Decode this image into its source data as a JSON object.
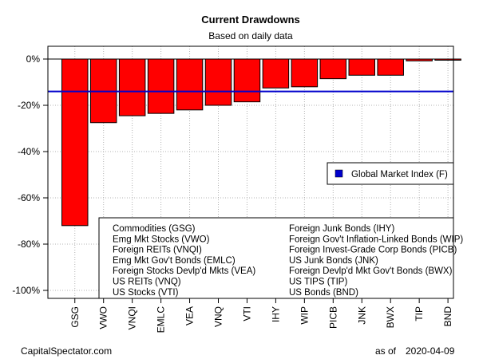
{
  "chart_data": {
    "type": "bar",
    "title": "Current Drawdowns",
    "subtitle": "Based on daily data",
    "categories": [
      "GSG",
      "VWO",
      "VNQI",
      "EMLC",
      "VEA",
      "VNQ",
      "VTI",
      "IHY",
      "WIP",
      "PICB",
      "JNK",
      "BWX",
      "TIP",
      "BND"
    ],
    "values": [
      -72,
      -27.5,
      -24.5,
      -23.5,
      -22,
      -20,
      -18.5,
      -12.5,
      -12,
      -8.5,
      -7,
      -7,
      -0.8,
      -0.5
    ],
    "ylim": [
      -105,
      5
    ],
    "yticks": [
      0,
      -20,
      -40,
      -60,
      -80,
      -100
    ],
    "ytick_labels": [
      "0%",
      "-20%",
      "-40%",
      "-60%",
      "-80%",
      "-100%"
    ],
    "bar_color": "#ff0000",
    "grid": true,
    "reference_line": {
      "label": "Global Market Index (F)",
      "value": -14,
      "color": "#0000cc"
    },
    "legend_placement": "right",
    "ticker_legend": [
      "Commodities (GSG)",
      "Emg Mkt Stocks (VWO)",
      "Foreign REITs (VNQI)",
      "Emg Mkt Gov't Bonds (EMLC)",
      "Foreign Stocks Devlp'd Mkts (VEA)",
      "US REITs (VNQ)",
      "US Stocks (VTI)",
      "Foreign Junk Bonds (IHY)",
      "Foreign Gov't Inflation-Linked Bonds (WIP)",
      "Foreign Invest-Grade Corp Bonds (PICB)",
      "US Junk Bonds (JNK)",
      "Foreign Devlp'd Mkt Gov't Bonds (BWX)",
      "US TIPS (TIP)",
      "US Bonds (BND)"
    ]
  },
  "footer": {
    "source": "CapitalSpectator.com",
    "as_of_label": "as of",
    "date": "2020-04-09"
  }
}
